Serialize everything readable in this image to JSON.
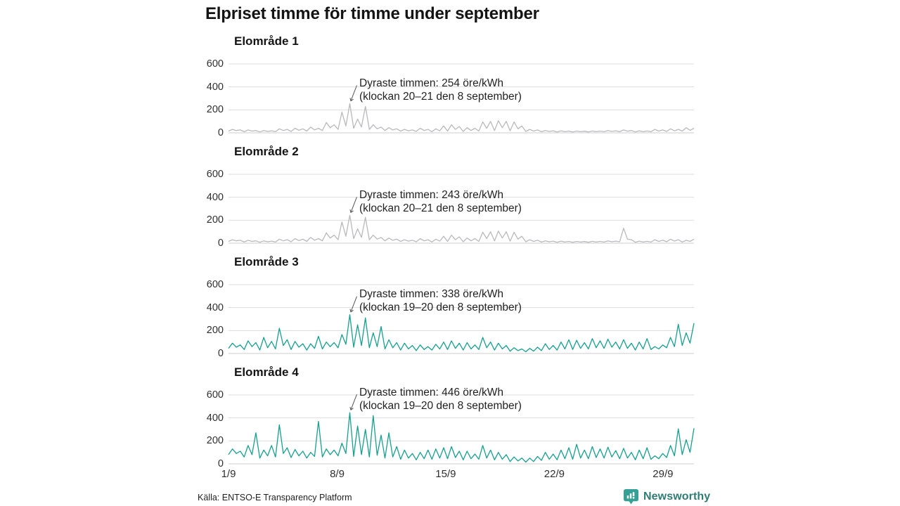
{
  "title": "Elpriset timme för timme under september",
  "source": "Källa: ENTSO-E Transparency Platform",
  "logo": {
    "text": "Newsworthy"
  },
  "colors": {
    "gray": "#b9b9bf",
    "teal": "#16a090",
    "grid": "#dddddd",
    "zero_line": "#cccccc",
    "annotation_arrow": "#555555",
    "logo_icon": "#35a093",
    "logo_text": "#2e7c74"
  },
  "x_axis": {
    "ticks": [
      "1/9",
      "8/9",
      "15/9",
      "22/9",
      "29/9"
    ],
    "tick_days": [
      1,
      8,
      15,
      22,
      29
    ],
    "days": 30
  },
  "y_axis": {
    "ticks": [
      600,
      400,
      200,
      0
    ],
    "max": 600,
    "unit": "öre/kWh"
  },
  "chart_data": [
    {
      "type": "line",
      "title": "Elområde 1",
      "color": "gray",
      "unit": "öre/kWh",
      "samples_per_day": 4,
      "annotation": {
        "line1": "Dyraste timmen: 254 öre/kWh",
        "line2": "(klockan 20–21 den 8 september)",
        "peak_value": 254,
        "peak_index": 31
      },
      "values": [
        15,
        30,
        20,
        25,
        10,
        25,
        15,
        20,
        8,
        20,
        12,
        18,
        10,
        35,
        20,
        30,
        12,
        40,
        22,
        35,
        15,
        50,
        25,
        40,
        20,
        90,
        45,
        70,
        30,
        180,
        60,
        254,
        40,
        120,
        50,
        230,
        30,
        70,
        35,
        50,
        20,
        45,
        25,
        35,
        15,
        30,
        18,
        25,
        12,
        40,
        20,
        30,
        10,
        35,
        18,
        60,
        15,
        70,
        30,
        55,
        12,
        45,
        20,
        40,
        15,
        95,
        40,
        100,
        20,
        105,
        45,
        100,
        18,
        95,
        35,
        60,
        12,
        30,
        15,
        25,
        10,
        20,
        12,
        18,
        8,
        18,
        10,
        15,
        8,
        15,
        10,
        14,
        8,
        16,
        10,
        15,
        10,
        20,
        12,
        18,
        10,
        25,
        14,
        20,
        8,
        18,
        10,
        16,
        10,
        30,
        15,
        25,
        12,
        35,
        18,
        30,
        15,
        45,
        22,
        40
      ]
    },
    {
      "type": "line",
      "title": "Elområde 2",
      "color": "gray",
      "unit": "öre/kWh",
      "samples_per_day": 4,
      "annotation": {
        "line1": "Dyraste timmen: 243 öre/kWh",
        "line2": "(klockan 20–21 den 8 september)",
        "peak_value": 243,
        "peak_index": 31
      },
      "values": [
        15,
        30,
        20,
        25,
        10,
        25,
        15,
        20,
        8,
        20,
        12,
        18,
        10,
        35,
        20,
        30,
        12,
        40,
        22,
        35,
        15,
        50,
        25,
        40,
        20,
        90,
        45,
        70,
        30,
        185,
        60,
        243,
        40,
        125,
        50,
        225,
        30,
        70,
        35,
        50,
        20,
        45,
        25,
        35,
        15,
        30,
        18,
        25,
        12,
        40,
        20,
        30,
        10,
        35,
        18,
        60,
        15,
        70,
        30,
        55,
        12,
        45,
        20,
        40,
        15,
        95,
        40,
        100,
        20,
        105,
        45,
        100,
        18,
        95,
        35,
        60,
        12,
        30,
        15,
        25,
        10,
        20,
        12,
        18,
        8,
        18,
        10,
        15,
        8,
        15,
        10,
        14,
        8,
        16,
        10,
        15,
        10,
        20,
        12,
        18,
        12,
        130,
        35,
        30,
        8,
        18,
        10,
        16,
        10,
        30,
        15,
        25,
        12,
        35,
        18,
        30,
        10,
        25,
        15,
        35
      ]
    },
    {
      "type": "line",
      "title": "Elområde 3",
      "color": "teal",
      "unit": "öre/kWh",
      "samples_per_day": 4,
      "annotation": {
        "line1": "Dyraste timmen: 338 öre/kWh",
        "line2": "(klockan 19–20 den 8 september)",
        "peak_value": 338,
        "peak_index": 31
      },
      "values": [
        45,
        90,
        55,
        75,
        35,
        110,
        60,
        95,
        30,
        140,
        50,
        105,
        40,
        220,
        70,
        120,
        35,
        105,
        55,
        85,
        30,
        85,
        45,
        150,
        40,
        100,
        60,
        95,
        50,
        165,
        80,
        338,
        55,
        250,
        70,
        310,
        50,
        180,
        60,
        235,
        40,
        120,
        50,
        95,
        30,
        90,
        40,
        70,
        25,
        75,
        35,
        60,
        30,
        80,
        40,
        100,
        35,
        110,
        45,
        90,
        30,
        95,
        40,
        75,
        35,
        140,
        50,
        100,
        30,
        90,
        40,
        70,
        20,
        50,
        25,
        40,
        15,
        45,
        20,
        55,
        25,
        85,
        35,
        70,
        30,
        100,
        40,
        120,
        35,
        115,
        45,
        95,
        40,
        130,
        50,
        110,
        45,
        125,
        55,
        100,
        40,
        120,
        45,
        90,
        30,
        100,
        40,
        130,
        35,
        60,
        40,
        75,
        50,
        140,
        60,
        255,
        70,
        180,
        90,
        265
      ]
    },
    {
      "type": "line",
      "title": "Elområde 4",
      "color": "teal",
      "unit": "öre/kWh",
      "samples_per_day": 4,
      "annotation": {
        "line1": "Dyraste timmen: 446 öre/kWh",
        "line2": "(klockan 19–20 den 8 september)",
        "peak_value": 446,
        "peak_index": 31
      },
      "values": [
        80,
        130,
        90,
        110,
        60,
        160,
        80,
        270,
        50,
        120,
        70,
        160,
        60,
        340,
        90,
        140,
        55,
        125,
        70,
        110,
        50,
        100,
        65,
        370,
        60,
        130,
        80,
        120,
        70,
        180,
        90,
        446,
        65,
        330,
        80,
        300,
        60,
        420,
        75,
        250,
        50,
        270,
        60,
        150,
        40,
        120,
        50,
        90,
        35,
        100,
        45,
        120,
        40,
        130,
        50,
        140,
        45,
        150,
        55,
        110,
        35,
        110,
        45,
        85,
        40,
        160,
        50,
        120,
        35,
        100,
        40,
        80,
        20,
        60,
        25,
        50,
        15,
        50,
        20,
        65,
        30,
        100,
        40,
        85,
        35,
        120,
        45,
        140,
        40,
        170,
        50,
        120,
        45,
        150,
        55,
        130,
        50,
        145,
        60,
        115,
        45,
        135,
        50,
        100,
        35,
        120,
        45,
        140,
        40,
        70,
        45,
        90,
        55,
        160,
        70,
        305,
        80,
        210,
        100,
        310
      ]
    }
  ]
}
